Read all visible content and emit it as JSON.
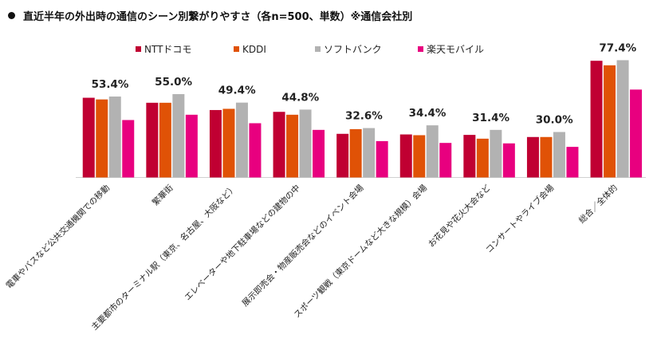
{
  "title": "直近半年の外出時の通信のシーン別繋がりやすさ（各n=500、単数）※通信会社別",
  "chart_data": {
    "type": "bar",
    "title": "直近半年の外出時の通信のシーン別繋がりやすさ（各n=500、単数）※通信会社別",
    "xlabel": "",
    "ylabel": "",
    "ylim": [
      0,
      80
    ],
    "grid": false,
    "legend_position": "top",
    "categories": [
      "電車やバスなど公共交通機関での移動",
      "繁華街",
      "主要都市のターミナル駅（東京、名古屋、大阪など）",
      "エレベーターや地下駐車場などの建物の中",
      "展示即売会・物産販売会などのイベント会場",
      "スポーツ観戦（東京ドームなど大きな規模）会場",
      "お花見や花火大会など",
      "コンサートやライブ会場",
      "総合／全体的"
    ],
    "series": [
      {
        "name": "NTTドコモ",
        "color": "#c00032",
        "values": [
          52.6,
          49.3,
          44.5,
          43.3,
          28.8,
          28.4,
          28.1,
          26.7,
          77.0
        ]
      },
      {
        "name": "KDDI",
        "color": "#e05206",
        "values": [
          51.5,
          49.3,
          45.3,
          41.4,
          31.9,
          27.9,
          25.6,
          26.7,
          74.0
        ]
      },
      {
        "name": "ソフトバンク",
        "color": "#b2b2b2",
        "values": [
          53.4,
          55.0,
          49.4,
          44.8,
          32.6,
          34.4,
          31.4,
          30.0,
          77.4
        ]
      },
      {
        "name": "楽天モバイル",
        "color": "#e8007f",
        "values": [
          37.9,
          41.4,
          35.8,
          31.4,
          24.0,
          22.8,
          22.5,
          20.2,
          58.0
        ]
      }
    ],
    "data_labels": [
      "53.4%",
      "55.0%",
      "49.4%",
      "44.8%",
      "32.6%",
      "34.4%",
      "31.4%",
      "30.0%",
      "77.4%"
    ]
  }
}
